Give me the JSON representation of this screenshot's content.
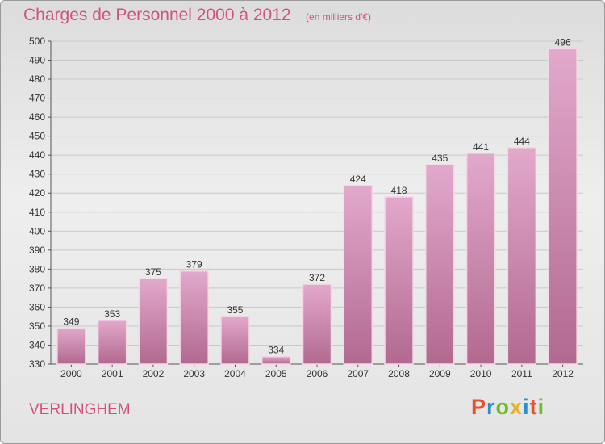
{
  "header": {
    "title": "Charges de Personnel 2000 à 2012",
    "subtitle": "(en milliers d'€)"
  },
  "footer": {
    "commune": "VERLINGHEM",
    "logo_letters": [
      "P",
      "r",
      "o",
      "x",
      "i",
      "t",
      "i"
    ]
  },
  "colors": {
    "bar": "#c86496",
    "title": "#d2527f",
    "logo": [
      "#e8502a",
      "#2a8fd1",
      "#6cbd2b",
      "#e8b02a",
      "#2a8fd1",
      "#e8502a",
      "#6cbd2b"
    ]
  },
  "chart_data": {
    "type": "bar",
    "title": "Charges de Personnel 2000 à 2012",
    "subtitle": "(en milliers d'€)",
    "categories": [
      "2000",
      "2001",
      "2002",
      "2003",
      "2004",
      "2005",
      "2006",
      "2007",
      "2008",
      "2009",
      "2010",
      "2011",
      "2012"
    ],
    "values": [
      349,
      353,
      375,
      379,
      355,
      334,
      372,
      424,
      418,
      435,
      441,
      444,
      496
    ],
    "ylim": [
      330,
      500
    ],
    "yticks": [
      330,
      340,
      350,
      360,
      370,
      380,
      390,
      400,
      410,
      420,
      430,
      440,
      450,
      460,
      470,
      480,
      490,
      500
    ],
    "grid": true,
    "data_labels": true
  }
}
